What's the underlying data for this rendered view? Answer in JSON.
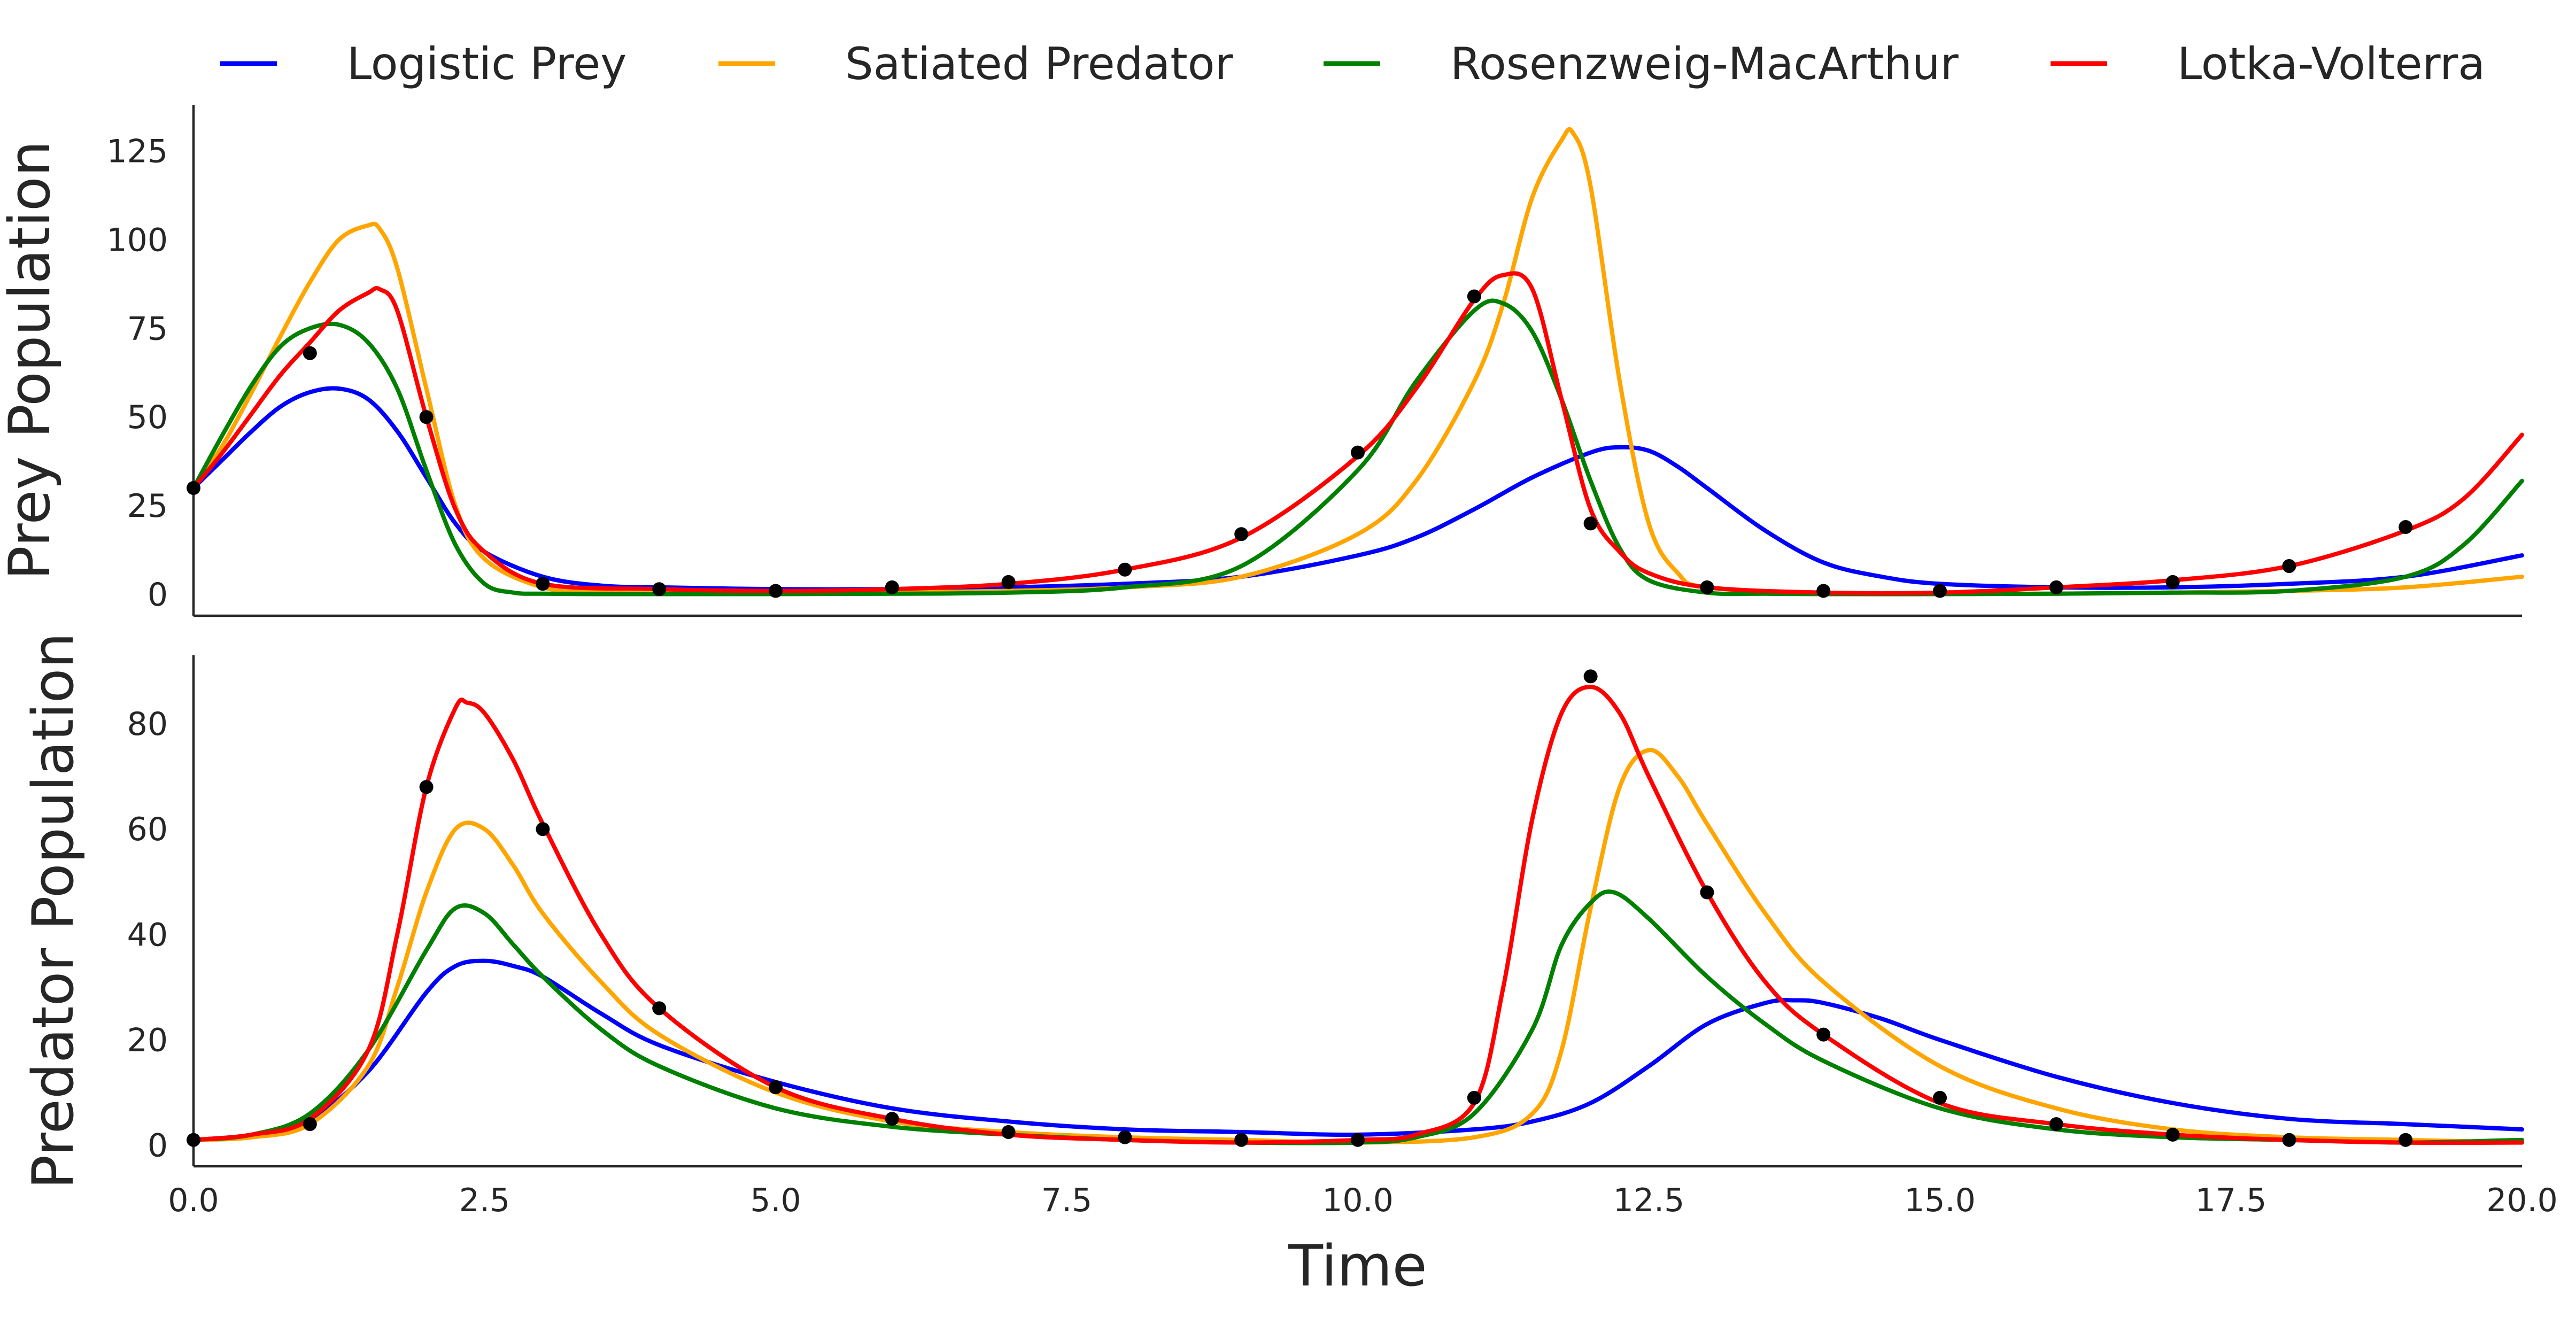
{
  "chart_data": [
    {
      "type": "line",
      "panel": "prey",
      "ylabel": "Prey Population",
      "xlabel": "",
      "xlim": [
        0,
        20
      ],
      "ylim": [
        -6,
        138
      ],
      "yticks": [
        0,
        25,
        50,
        75,
        100,
        125
      ],
      "yticklabels": [
        "0",
        "25",
        "50",
        "75",
        "100",
        "125"
      ],
      "grid": false,
      "series": [
        {
          "name": "Logistic Prey",
          "color": "#0000ff",
          "x": [
            0,
            0.25,
            0.5,
            0.75,
            1,
            1.25,
            1.5,
            1.75,
            2,
            2.25,
            2.5,
            3,
            3.5,
            4,
            5,
            6,
            7,
            8,
            9,
            10,
            10.5,
            11,
            11.5,
            12,
            12.25,
            12.5,
            12.75,
            13,
            13.5,
            14,
            14.5,
            15,
            16,
            17,
            18,
            19,
            20
          ],
          "y": [
            30,
            38,
            46,
            53,
            57,
            58,
            55,
            46,
            33,
            20,
            12,
            5,
            2.5,
            2,
            1.5,
            1.5,
            2,
            3,
            5,
            11,
            16,
            24,
            33,
            40,
            41.5,
            40.5,
            36,
            30,
            18,
            9,
            5,
            3,
            2,
            2,
            3,
            5,
            11
          ]
        },
        {
          "name": "Satiated Predator",
          "color": "#ffa500",
          "x": [
            0,
            0.25,
            0.5,
            0.75,
            1,
            1.25,
            1.5,
            1.6,
            1.75,
            2,
            2.25,
            2.5,
            3,
            3.5,
            4,
            5,
            6,
            7,
            8,
            9,
            10,
            10.5,
            11,
            11.25,
            11.5,
            11.75,
            11.85,
            12,
            12.25,
            12.5,
            12.75,
            13,
            14,
            15,
            16,
            17,
            18,
            19,
            20
          ],
          "y": [
            30,
            42,
            57,
            73,
            88,
            100,
            104,
            103,
            92,
            58,
            25,
            10,
            2,
            0.5,
            0.3,
            0.3,
            0.5,
            1,
            2,
            5,
            17,
            32,
            60,
            82,
            112,
            128,
            130,
            115,
            60,
            20,
            6,
            2,
            0.3,
            0.2,
            0.2,
            0.5,
            1,
            2,
            5
          ]
        },
        {
          "name": "Rosenzweig-MacArthur",
          "color": "#008000",
          "x": [
            0,
            0.25,
            0.5,
            0.75,
            1,
            1.25,
            1.5,
            1.75,
            2,
            2.25,
            2.5,
            2.75,
            3,
            3.5,
            4,
            5,
            6,
            7,
            8,
            9,
            10,
            10.5,
            11,
            11.25,
            11.5,
            11.75,
            12,
            12.25,
            12.5,
            13,
            13.5,
            14,
            15,
            16,
            17,
            18,
            19,
            19.5,
            20
          ],
          "y": [
            30,
            45,
            59,
            70,
            75,
            76,
            71,
            58,
            35,
            14,
            3,
            0.5,
            0.2,
            0.1,
            0.1,
            0.1,
            0.2,
            0.5,
            2,
            8,
            35,
            60,
            80,
            82,
            74,
            55,
            32,
            13,
            4,
            0.5,
            0.2,
            0.1,
            0.1,
            0.2,
            0.5,
            1,
            5,
            14,
            32
          ]
        },
        {
          "name": "Lotka-Volterra",
          "color": "#ff0000",
          "x": [
            0,
            0.25,
            0.5,
            0.75,
            1,
            1.25,
            1.5,
            1.6,
            1.75,
            2,
            2.25,
            2.5,
            3,
            4,
            5,
            6,
            7,
            8,
            9,
            10,
            10.5,
            11,
            11.25,
            11.5,
            11.75,
            12,
            12.25,
            12.5,
            13,
            14,
            15,
            16,
            17,
            18,
            19,
            19.5,
            20
          ],
          "y": [
            30,
            40,
            51,
            62,
            71,
            80,
            85,
            86,
            80,
            50,
            24,
            12,
            3,
            1.5,
            1,
            1.5,
            3,
            7,
            16,
            39,
            58,
            83,
            90,
            86,
            55,
            24,
            12,
            6,
            2,
            0.5,
            0.5,
            2,
            4,
            8,
            18,
            27,
            45
          ]
        },
        {
          "name": "",
          "role": "observations",
          "color": "#000000",
          "x": [
            0,
            1,
            2,
            3,
            4,
            5,
            6,
            7,
            8,
            9,
            10,
            11,
            12,
            13,
            14,
            15,
            16,
            17,
            18,
            19
          ],
          "y": [
            30,
            68,
            50,
            3,
            1.5,
            1,
            2,
            3.5,
            7,
            17,
            40,
            84,
            20,
            2,
            1,
            1,
            2,
            3.5,
            8,
            19
          ]
        }
      ]
    },
    {
      "type": "line",
      "panel": "predator",
      "ylabel": "Predator Population",
      "xlabel": "Time",
      "xlim": [
        0,
        20
      ],
      "ylim": [
        -4,
        93
      ],
      "yticks": [
        0,
        20,
        40,
        60,
        80
      ],
      "yticklabels": [
        "0",
        "20",
        "40",
        "60",
        "80"
      ],
      "xticks": [
        0,
        2.5,
        5,
        7.5,
        10,
        12.5,
        15,
        17.5,
        20
      ],
      "xticklabels": [
        "0.0",
        "2.5",
        "5.0",
        "7.5",
        "10.0",
        "12.5",
        "15.0",
        "17.5",
        "20.0"
      ],
      "grid": false,
      "series": [
        {
          "name": "Logistic Prey",
          "color": "#0000ff",
          "x": [
            0,
            0.5,
            1,
            1.5,
            2,
            2.25,
            2.5,
            2.75,
            3,
            3.5,
            4,
            5,
            6,
            7,
            8,
            9,
            10,
            11,
            11.5,
            12,
            12.5,
            13,
            13.5,
            13.75,
            14,
            14.5,
            15,
            16,
            17,
            18,
            19,
            20
          ],
          "y": [
            1,
            2,
            5,
            14,
            29,
            34,
            35,
            34,
            32,
            25,
            19,
            12,
            7,
            4.5,
            3,
            2.5,
            2,
            3,
            4.5,
            8,
            15,
            23,
            27,
            27.5,
            27,
            24,
            20,
            13,
            8,
            5,
            4,
            3
          ]
        },
        {
          "name": "Satiated Predator",
          "color": "#ffa500",
          "x": [
            0,
            0.5,
            1,
            1.5,
            1.75,
            2,
            2.25,
            2.5,
            2.75,
            3,
            3.5,
            4,
            5,
            6,
            7,
            8,
            9,
            10,
            11,
            11.5,
            11.75,
            12,
            12.25,
            12.5,
            12.75,
            13,
            13.5,
            14,
            15,
            16,
            17,
            18,
            19,
            20
          ],
          "y": [
            1,
            1.5,
            4,
            15,
            30,
            48,
            60,
            60,
            53,
            44,
            31,
            21,
            10,
            4.5,
            2.5,
            1.5,
            1,
            0.5,
            1.5,
            6,
            18,
            45,
            68,
            75,
            70,
            61,
            44,
            31,
            15,
            7,
            3,
            1.5,
            1,
            0.5
          ]
        },
        {
          "name": "Rosenzweig-MacArthur",
          "color": "#008000",
          "x": [
            0,
            0.5,
            1,
            1.5,
            2,
            2.25,
            2.5,
            2.75,
            3,
            3.5,
            4,
            5,
            6,
            7,
            8,
            9,
            10,
            10.5,
            11,
            11.5,
            11.75,
            12,
            12.2,
            12.5,
            13,
            13.5,
            14,
            15,
            16,
            17,
            18,
            19,
            20
          ],
          "y": [
            1,
            2,
            6,
            18,
            37,
            45,
            44,
            38,
            32,
            22,
            15,
            7,
            3.5,
            2,
            1,
            0.5,
            0.5,
            1.5,
            6,
            22,
            38,
            46,
            48,
            43,
            32,
            23,
            16,
            7,
            3,
            1.5,
            1,
            0.5,
            1
          ]
        },
        {
          "name": "Lotka-Volterra",
          "color": "#ff0000",
          "x": [
            0,
            0.5,
            1,
            1.5,
            1.75,
            2,
            2.25,
            2.35,
            2.5,
            2.75,
            3,
            3.5,
            4,
            5,
            6,
            7,
            8,
            9,
            10,
            10.5,
            11,
            11.25,
            11.5,
            11.75,
            12,
            12.25,
            12.5,
            13,
            13.5,
            14,
            15,
            16,
            17,
            18,
            19,
            20
          ],
          "y": [
            1,
            2,
            5,
            18,
            40,
            68,
            83,
            84,
            82,
            73,
            61,
            40,
            26,
            11,
            5,
            2,
            1,
            0.5,
            1,
            2,
            8,
            30,
            62,
            82,
            87,
            82,
            70,
            48,
            31,
            21,
            8,
            4,
            2,
            1,
            0.5,
            0.5
          ]
        },
        {
          "name": "",
          "role": "observations",
          "color": "#000000",
          "x": [
            0,
            1,
            2,
            3,
            4,
            5,
            6,
            7,
            8,
            9,
            10,
            11,
            12,
            13,
            14,
            15,
            16,
            17,
            18,
            19
          ],
          "y": [
            1,
            4,
            68,
            60,
            26,
            11,
            5,
            2.5,
            1.5,
            1,
            1,
            9,
            89,
            48,
            21,
            9,
            4,
            2,
            1,
            1
          ]
        }
      ]
    }
  ],
  "legend": {
    "placement": "top-center",
    "entries": [
      {
        "label": "Logistic Prey",
        "color": "#0000ff"
      },
      {
        "label": "Satiated Predator",
        "color": "#ffa500"
      },
      {
        "label": "Rosenzweig-MacArthur",
        "color": "#008000"
      },
      {
        "label": "Lotka-Volterra",
        "color": "#ff0000"
      }
    ]
  }
}
